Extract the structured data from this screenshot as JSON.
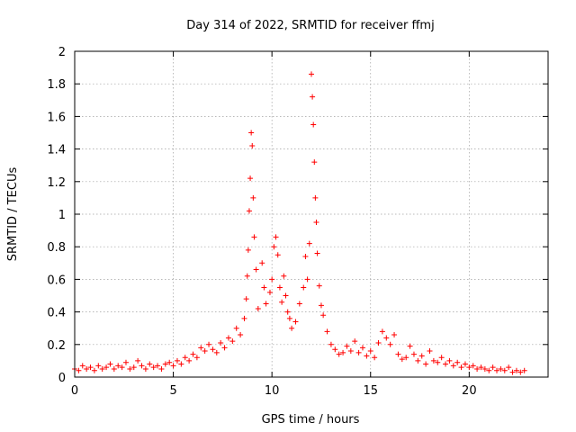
{
  "chart_data": {
    "type": "scatter",
    "title": "Day 314 of 2022, SRMTID for receiver ffmj",
    "xlabel": "GPS time / hours",
    "ylabel": "SRMTID / TECUs",
    "xlim": [
      0,
      24
    ],
    "ylim": [
      0,
      2
    ],
    "xticks": [
      0,
      5,
      10,
      15,
      20
    ],
    "xtick_labels": [
      "0",
      "5",
      "10",
      "15",
      "20"
    ],
    "yticks": [
      0,
      0.2,
      0.4,
      0.6,
      0.8,
      1,
      1.2,
      1.4,
      1.6,
      1.8,
      2
    ],
    "ytick_labels": [
      "0",
      "0.2",
      "0.4",
      "0.6",
      "0.8",
      "1",
      "1.2",
      "1.4",
      "1.6",
      "1.8",
      "2"
    ],
    "grid": true,
    "marker": "plus",
    "color": "#ff0000",
    "series": [
      {
        "name": "SRMTID",
        "points": [
          [
            0.0,
            0.05
          ],
          [
            0.2,
            0.04
          ],
          [
            0.4,
            0.07
          ],
          [
            0.6,
            0.05
          ],
          [
            0.8,
            0.06
          ],
          [
            1.0,
            0.04
          ],
          [
            1.2,
            0.07
          ],
          [
            1.4,
            0.05
          ],
          [
            1.6,
            0.06
          ],
          [
            1.8,
            0.08
          ],
          [
            2.0,
            0.05
          ],
          [
            2.2,
            0.07
          ],
          [
            2.4,
            0.06
          ],
          [
            2.6,
            0.09
          ],
          [
            2.8,
            0.05
          ],
          [
            3.0,
            0.06
          ],
          [
            3.2,
            0.1
          ],
          [
            3.4,
            0.07
          ],
          [
            3.6,
            0.05
          ],
          [
            3.8,
            0.08
          ],
          [
            4.0,
            0.06
          ],
          [
            4.2,
            0.07
          ],
          [
            4.4,
            0.05
          ],
          [
            4.6,
            0.08
          ],
          [
            4.8,
            0.09
          ],
          [
            5.0,
            0.07
          ],
          [
            5.2,
            0.1
          ],
          [
            5.4,
            0.08
          ],
          [
            5.6,
            0.12
          ],
          [
            5.8,
            0.1
          ],
          [
            6.0,
            0.14
          ],
          [
            6.2,
            0.12
          ],
          [
            6.4,
            0.18
          ],
          [
            6.6,
            0.16
          ],
          [
            6.8,
            0.2
          ],
          [
            7.0,
            0.17
          ],
          [
            7.2,
            0.15
          ],
          [
            7.4,
            0.21
          ],
          [
            7.6,
            0.18
          ],
          [
            7.8,
            0.24
          ],
          [
            8.0,
            0.22
          ],
          [
            8.2,
            0.3
          ],
          [
            8.4,
            0.26
          ],
          [
            8.6,
            0.36
          ],
          [
            8.7,
            0.48
          ],
          [
            8.75,
            0.62
          ],
          [
            8.8,
            0.78
          ],
          [
            8.85,
            1.02
          ],
          [
            8.9,
            1.22
          ],
          [
            8.95,
            1.5
          ],
          [
            9.0,
            1.42
          ],
          [
            9.05,
            1.1
          ],
          [
            9.1,
            0.86
          ],
          [
            9.2,
            0.66
          ],
          [
            9.3,
            0.42
          ],
          [
            9.5,
            0.7
          ],
          [
            9.6,
            0.55
          ],
          [
            9.7,
            0.45
          ],
          [
            9.9,
            0.52
          ],
          [
            10.0,
            0.6
          ],
          [
            10.1,
            0.8
          ],
          [
            10.2,
            0.86
          ],
          [
            10.3,
            0.75
          ],
          [
            10.4,
            0.55
          ],
          [
            10.5,
            0.46
          ],
          [
            10.6,
            0.62
          ],
          [
            10.7,
            0.5
          ],
          [
            10.8,
            0.4
          ],
          [
            10.9,
            0.36
          ],
          [
            11.0,
            0.3
          ],
          [
            11.2,
            0.34
          ],
          [
            11.4,
            0.45
          ],
          [
            11.6,
            0.55
          ],
          [
            11.7,
            0.74
          ],
          [
            11.8,
            0.6
          ],
          [
            11.9,
            0.82
          ],
          [
            12.0,
            1.86
          ],
          [
            12.05,
            1.72
          ],
          [
            12.1,
            1.55
          ],
          [
            12.15,
            1.32
          ],
          [
            12.2,
            1.1
          ],
          [
            12.25,
            0.95
          ],
          [
            12.3,
            0.76
          ],
          [
            12.4,
            0.56
          ],
          [
            12.5,
            0.44
          ],
          [
            12.6,
            0.38
          ],
          [
            12.8,
            0.28
          ],
          [
            13.0,
            0.2
          ],
          [
            13.2,
            0.17
          ],
          [
            13.4,
            0.14
          ],
          [
            13.6,
            0.15
          ],
          [
            13.8,
            0.19
          ],
          [
            14.0,
            0.16
          ],
          [
            14.2,
            0.22
          ],
          [
            14.4,
            0.15
          ],
          [
            14.6,
            0.18
          ],
          [
            14.8,
            0.13
          ],
          [
            15.0,
            0.16
          ],
          [
            15.2,
            0.12
          ],
          [
            15.4,
            0.21
          ],
          [
            15.6,
            0.28
          ],
          [
            15.8,
            0.24
          ],
          [
            16.0,
            0.2
          ],
          [
            16.2,
            0.26
          ],
          [
            16.4,
            0.14
          ],
          [
            16.6,
            0.11
          ],
          [
            16.8,
            0.12
          ],
          [
            17.0,
            0.19
          ],
          [
            17.2,
            0.14
          ],
          [
            17.4,
            0.1
          ],
          [
            17.6,
            0.13
          ],
          [
            17.8,
            0.08
          ],
          [
            18.0,
            0.16
          ],
          [
            18.2,
            0.1
          ],
          [
            18.4,
            0.09
          ],
          [
            18.6,
            0.12
          ],
          [
            18.8,
            0.08
          ],
          [
            19.0,
            0.1
          ],
          [
            19.2,
            0.07
          ],
          [
            19.4,
            0.09
          ],
          [
            19.6,
            0.06
          ],
          [
            19.8,
            0.08
          ],
          [
            20.0,
            0.06
          ],
          [
            20.2,
            0.07
          ],
          [
            20.4,
            0.05
          ],
          [
            20.6,
            0.06
          ],
          [
            20.8,
            0.05
          ],
          [
            21.0,
            0.04
          ],
          [
            21.2,
            0.06
          ],
          [
            21.4,
            0.04
          ],
          [
            21.6,
            0.05
          ],
          [
            21.8,
            0.04
          ],
          [
            22.0,
            0.06
          ],
          [
            22.2,
            0.03
          ],
          [
            22.4,
            0.04
          ],
          [
            22.6,
            0.03
          ],
          [
            22.8,
            0.04
          ]
        ]
      }
    ]
  }
}
